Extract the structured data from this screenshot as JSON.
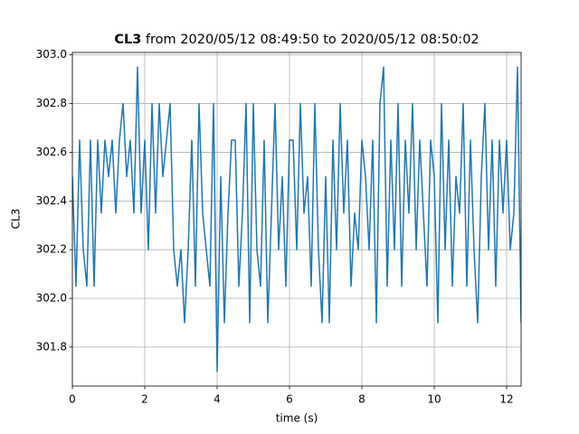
{
  "chart_data": {
    "type": "line",
    "title_bold": "CL3",
    "title": "from 2020/05/12 08:49:50 to 2020/05/12 08:50:02",
    "xlabel": "time (s)",
    "ylabel": "CL3",
    "grid": true,
    "color": "#1f77b4",
    "xlim": [
      0,
      12.4
    ],
    "ylim": [
      301.64,
      303.01
    ],
    "xticks": [
      0,
      2,
      4,
      6,
      8,
      10,
      12
    ],
    "yticks": [
      301.8,
      {
        "value": 302.0,
        "label": "302.0"
      },
      302.2,
      302.4,
      302.6,
      302.8,
      {
        "value": 303.0,
        "label": "303.0"
      }
    ],
    "x": [
      0,
      0.1,
      0.2,
      0.3,
      0.4,
      0.5,
      0.6,
      0.7,
      0.8,
      0.9,
      1,
      1.1,
      1.2,
      1.3,
      1.4,
      1.5,
      1.6,
      1.7,
      1.8,
      1.9,
      2,
      2.1,
      2.2,
      2.3,
      2.4,
      2.5,
      2.6,
      2.7,
      2.8,
      2.9,
      3,
      3.1,
      3.2,
      3.3,
      3.4,
      3.5,
      3.6,
      3.7,
      3.8,
      3.9,
      4,
      4.1,
      4.2,
      4.3,
      4.4,
      4.5,
      4.6,
      4.7,
      4.8,
      4.9,
      5,
      5.1,
      5.2,
      5.3,
      5.4,
      5.5,
      5.6,
      5.7,
      5.8,
      5.9,
      6,
      6.1,
      6.2,
      6.3,
      6.4,
      6.5,
      6.6,
      6.7,
      6.8,
      6.9,
      7,
      7.1,
      7.2,
      7.3,
      7.4,
      7.5,
      7.6,
      7.7,
      7.8,
      7.9,
      8,
      8.1,
      8.2,
      8.3,
      8.4,
      8.5,
      8.6,
      8.7,
      8.8,
      8.9,
      9,
      9.1,
      9.2,
      9.3,
      9.4,
      9.5,
      9.6,
      9.7,
      9.8,
      9.9,
      10,
      10.1,
      10.2,
      10.3,
      10.4,
      10.5,
      10.6,
      10.7,
      10.8,
      10.9,
      11,
      11.1,
      11.2,
      11.3,
      11.4,
      11.5,
      11.6,
      11.7,
      11.8,
      11.9,
      12,
      12.1,
      12.2,
      12.3,
      12.4
    ],
    "values": [
      302.5,
      302.05,
      302.65,
      302.2,
      302.05,
      302.65,
      302.05,
      302.65,
      302.35,
      302.65,
      302.5,
      302.65,
      302.35,
      302.65,
      302.8,
      302.5,
      302.65,
      302.35,
      302.95,
      302.35,
      302.65,
      302.2,
      302.8,
      302.35,
      302.8,
      302.5,
      302.65,
      302.8,
      302.2,
      302.05,
      302.2,
      301.9,
      302.2,
      302.65,
      302.05,
      302.8,
      302.35,
      302.2,
      302.05,
      302.8,
      301.7,
      302.5,
      301.9,
      302.35,
      302.65,
      302.65,
      302.05,
      302.35,
      302.8,
      301.9,
      302.8,
      302.2,
      302.05,
      302.65,
      301.9,
      302.35,
      302.8,
      302.2,
      302.5,
      302.05,
      302.65,
      302.65,
      302.2,
      302.8,
      302.35,
      302.5,
      302.05,
      302.8,
      302.2,
      301.9,
      302.5,
      301.9,
      302.65,
      302.2,
      302.8,
      302.35,
      302.65,
      302.05,
      302.35,
      302.2,
      302.65,
      302.5,
      302.2,
      302.65,
      301.9,
      302.8,
      302.95,
      302.05,
      302.65,
      302.2,
      302.8,
      302.05,
      302.65,
      302.35,
      302.8,
      302.2,
      302.65,
      302.35,
      302.05,
      302.65,
      302.5,
      301.9,
      302.8,
      302.2,
      302.65,
      302.05,
      302.5,
      302.35,
      302.8,
      302.05,
      302.65,
      302.2,
      301.9,
      302.5,
      302.8,
      302.2,
      302.65,
      302.05,
      302.65,
      302.35,
      302.65,
      302.2,
      302.35,
      302.95,
      301.9
    ]
  }
}
